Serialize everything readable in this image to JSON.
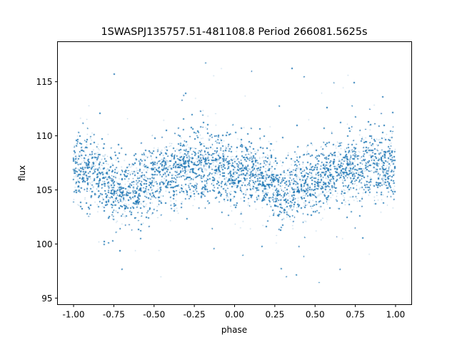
{
  "chart_data": {
    "type": "scatter",
    "title": "1SWASPJ135757.51-481108.8 Period 266081.5625s",
    "xlabel": "phase",
    "ylabel": "flux",
    "xlim": [
      -1.1,
      1.1
    ],
    "ylim": [
      94.4,
      118.7
    ],
    "xticks": [
      "-1.00",
      "-0.75",
      "-0.50",
      "-0.25",
      "0.00",
      "0.25",
      "0.50",
      "0.75",
      "1.00"
    ],
    "xtick_values": [
      -1,
      -0.75,
      -0.5,
      -0.25,
      0,
      0.25,
      0.5,
      0.75,
      1
    ],
    "yticks": [
      "95",
      "100",
      "105",
      "110",
      "115"
    ],
    "ytick_values": [
      95,
      100,
      105,
      110,
      115
    ],
    "grid": false,
    "legend": "none",
    "point_color": "#1f77b4",
    "flux_range_observed": [
      95.5,
      117.5
    ],
    "median_trend": {
      "phase": [
        -1.0,
        -0.9,
        -0.8,
        -0.7,
        -0.6,
        -0.5,
        -0.4,
        -0.3,
        -0.2,
        -0.1,
        0.0,
        0.1,
        0.2,
        0.3,
        0.4,
        0.5,
        0.6,
        0.7,
        0.8,
        0.9,
        1.0
      ],
      "flux": [
        106.8,
        106.6,
        105.8,
        104.6,
        105.3,
        106.0,
        106.5,
        106.8,
        107.3,
        107.1,
        106.6,
        106.5,
        105.8,
        104.6,
        105.3,
        106.0,
        106.5,
        106.8,
        107.3,
        107.1,
        106.8
      ]
    }
  }
}
